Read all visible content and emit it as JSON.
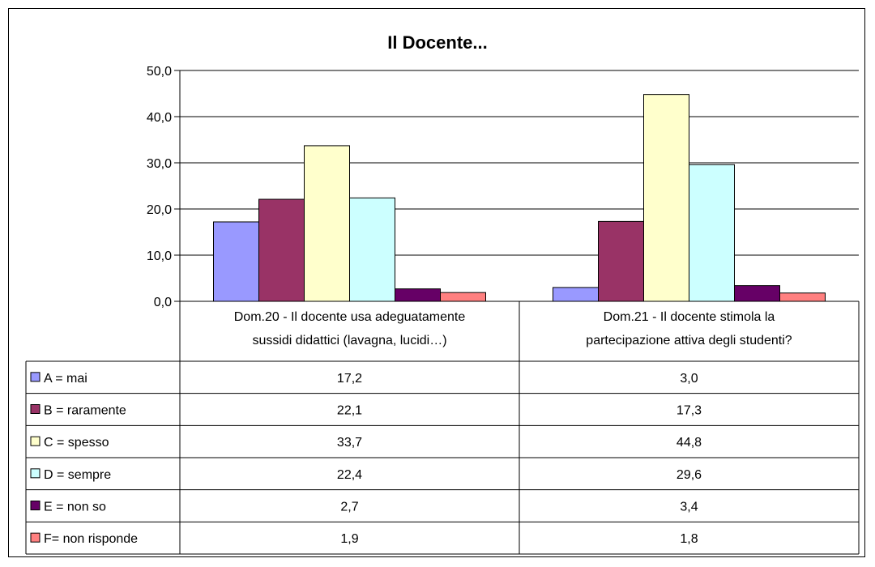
{
  "chart_data": {
    "type": "bar",
    "title": "Il Docente...",
    "categories": [
      [
        "Dom.20 - Il docente usa adeguatamente",
        "sussidi didattici (lavagna, lucidi…)"
      ],
      [
        "Dom.21 - Il docente stimola la",
        "partecipazione attiva degli studenti?"
      ]
    ],
    "ylim": [
      0,
      50
    ],
    "yticks": [
      "0,0",
      "10,0",
      "20,0",
      "30,0",
      "40,0",
      "50,0"
    ],
    "grid": true,
    "legend": "data-table",
    "series": [
      {
        "name": "A = mai",
        "color": "#9999FF",
        "values": [
          17.2,
          3.0
        ],
        "labels": [
          "17,2",
          "3,0"
        ]
      },
      {
        "name": "B = raramente",
        "color": "#993366",
        "values": [
          22.1,
          17.3
        ],
        "labels": [
          "22,1",
          "17,3"
        ]
      },
      {
        "name": "C = spesso",
        "color": "#FFFFCC",
        "values": [
          33.7,
          44.8
        ],
        "labels": [
          "33,7",
          "44,8"
        ]
      },
      {
        "name": "D = sempre",
        "color": "#CCFFFF",
        "values": [
          22.4,
          29.6
        ],
        "labels": [
          "22,4",
          "29,6"
        ]
      },
      {
        "name": "E = non so",
        "color": "#660066",
        "values": [
          2.7,
          3.4
        ],
        "labels": [
          "2,7",
          "3,4"
        ]
      },
      {
        "name": "F= non risponde",
        "color": "#FF8080",
        "values": [
          1.9,
          1.8
        ],
        "labels": [
          "1,9",
          "1,8"
        ]
      }
    ]
  }
}
